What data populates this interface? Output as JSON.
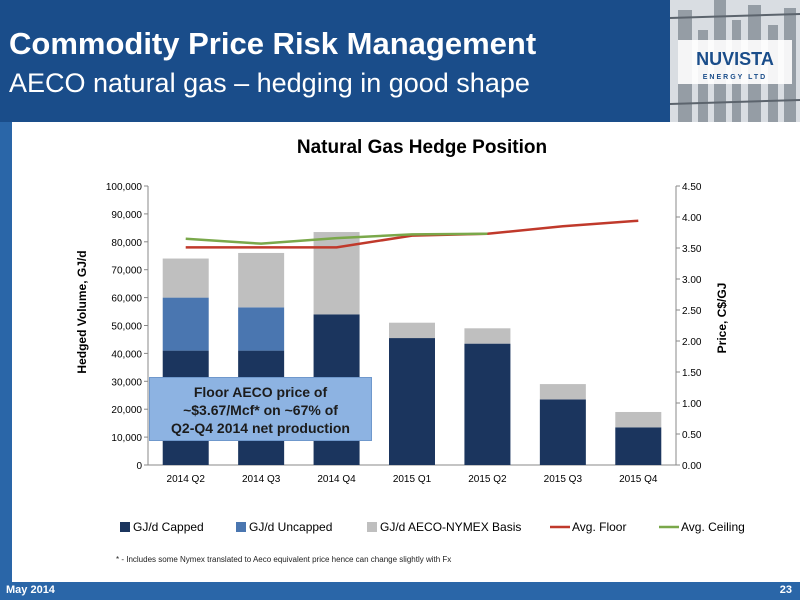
{
  "header": {
    "title": "Commodity Price Risk Management",
    "subtitle": "AECO natural gas – hedging in good shape"
  },
  "logo": {
    "brand": "NUVISTA",
    "sub": "ENERGY LTD"
  },
  "callout": {
    "line1": "Floor AECO price of",
    "line2": "~$3.67/Mcf* on  ~67% of",
    "line3": "Q2-Q4 2014 net production"
  },
  "footnote": "* - Includes some Nymex translated to Aeco equivalent price hence can change slightly with Fx",
  "footer": {
    "date": "May 2014",
    "page": "23"
  },
  "colors": {
    "capped": "#1b355e",
    "uncapped": "#4a76b0",
    "basis": "#bfbfbf",
    "floor": "#c0392b",
    "ceiling": "#7aa84a",
    "header": "#1a4d8a"
  },
  "chart_data": {
    "type": "bar",
    "title": "Natural Gas Hedge Position",
    "ylabel": "Hedged Volume, GJ/d",
    "y2label": "Price, C$/GJ",
    "categories": [
      "2014 Q2",
      "2014 Q3",
      "2014 Q4",
      "2015 Q1",
      "2015 Q2",
      "2015 Q3",
      "2015 Q4"
    ],
    "ylim": [
      0,
      100000
    ],
    "y2lim": [
      0,
      4.5
    ],
    "yticks": [
      "0",
      "10,000",
      "20,000",
      "30,000",
      "40,000",
      "50,000",
      "60,000",
      "70,000",
      "80,000",
      "90,000",
      "100,000"
    ],
    "y2ticks": [
      "0.00",
      "0.50",
      "1.00",
      "1.50",
      "2.00",
      "2.50",
      "3.00",
      "3.50",
      "4.00",
      "4.50"
    ],
    "series": [
      {
        "name": "GJ/d Capped",
        "kind": "bar",
        "values": [
          41000,
          41000,
          54000,
          45500,
          43500,
          23500,
          13500
        ]
      },
      {
        "name": "GJ/d Uncapped",
        "kind": "bar",
        "values": [
          19000,
          15500,
          0,
          0,
          0,
          0,
          0
        ]
      },
      {
        "name": "GJ/d AECO-NYMEX Basis",
        "kind": "bar",
        "values": [
          14000,
          19500,
          29500,
          5500,
          5500,
          5500,
          5500
        ]
      },
      {
        "name": "Avg. Floor",
        "kind": "line",
        "axis": "right",
        "values": [
          3.51,
          3.51,
          3.51,
          3.7,
          3.73,
          3.85,
          3.94
        ]
      },
      {
        "name": "Avg. Ceiling",
        "kind": "line",
        "axis": "right",
        "values": [
          3.65,
          3.57,
          3.66,
          3.72,
          3.73,
          null,
          null
        ]
      }
    ],
    "grid": false,
    "legend": "bottom"
  }
}
